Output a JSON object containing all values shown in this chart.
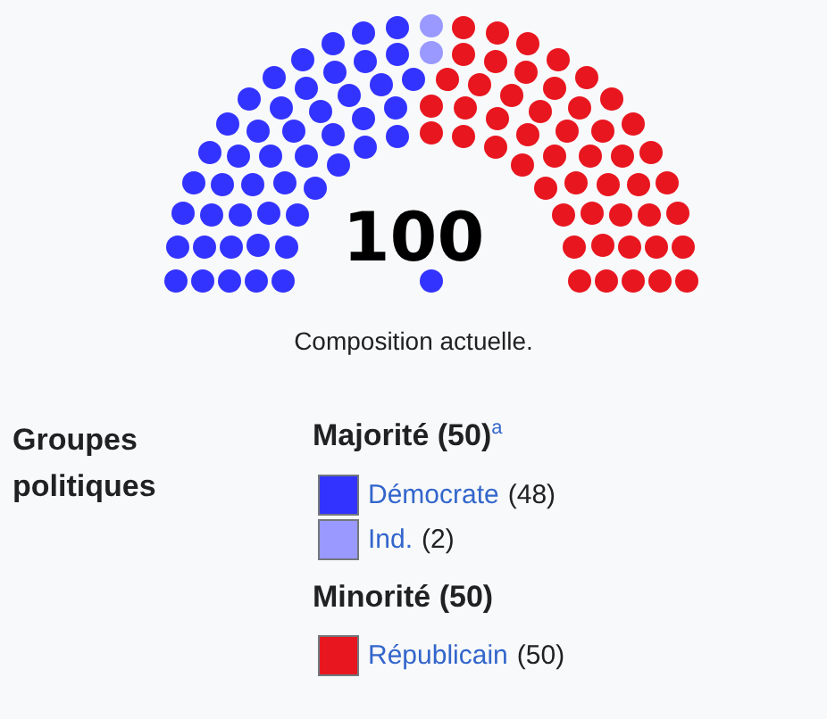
{
  "chart_data": {
    "type": "other",
    "categories": [
      "Démocrate",
      "Ind.",
      "Républicain"
    ],
    "values": [
      48,
      2,
      50
    ],
    "value_labels": [
      "(48)",
      "(2)",
      "(50)"
    ],
    "colors": [
      "#3333ff",
      "#9999ff",
      "#e8161f"
    ],
    "annotations": [
      "100",
      "Composition actuelle.",
      "Groupes politiques",
      "Majorité (50)$^{a}$",
      "Minorité (50)"
    ]
  }
}
